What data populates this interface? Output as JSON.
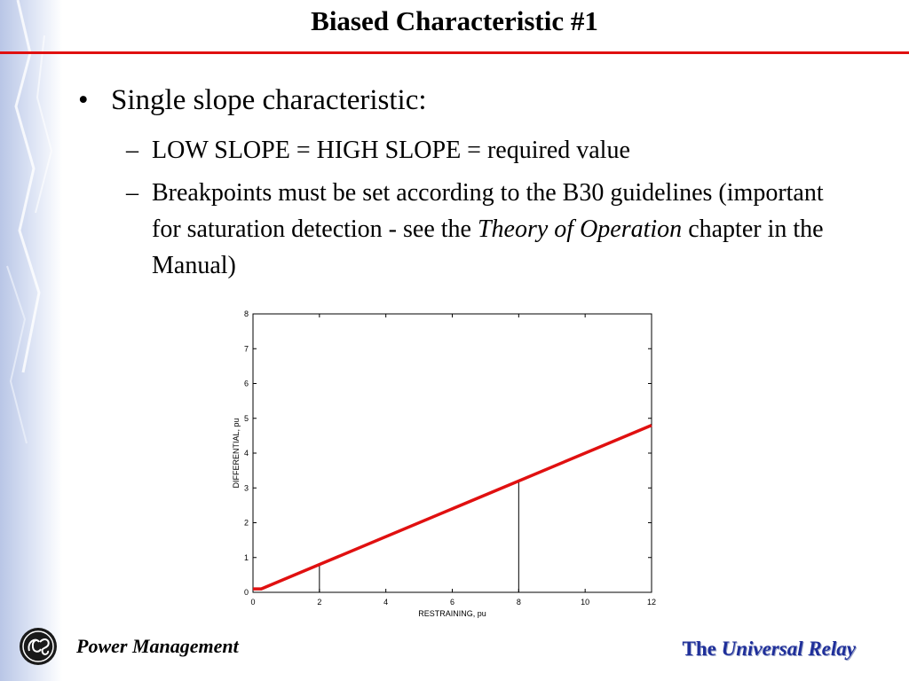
{
  "slide": {
    "title": "Biased Characteristic #1",
    "bullet": "Single slope characteristic:",
    "sub_bullets": {
      "first": "LOW SLOPE = HIGH SLOPE = required value",
      "second_part1": "Breakpoints must be set according to the B30 guidelines (important for saturation detection - see the ",
      "second_italic": "Theory of Operation",
      "second_part2": " chapter in the Manual)"
    },
    "bullet_marker": "•",
    "dash_marker": "–"
  },
  "footer": {
    "left": "Power Management",
    "right_the": "The ",
    "right_em": "Universal Relay",
    "logo": "ge-logo-icon"
  },
  "colors": {
    "accent_red": "#e01010",
    "series_red": "#e01010",
    "footer_blue": "#1f2f9a"
  },
  "chart_data": {
    "type": "line",
    "xlabel": "RESTRAINING, pu",
    "ylabel": "DIFFERENTIAL, pu",
    "xlim": [
      0,
      12
    ],
    "ylim": [
      0,
      8
    ],
    "xticks": [
      0,
      2,
      4,
      6,
      8,
      10,
      12
    ],
    "yticks": [
      0,
      1,
      2,
      3,
      4,
      5,
      6,
      7,
      8
    ],
    "series": [
      {
        "x": [
          0,
          0.25,
          12
        ],
        "y": [
          0.1,
          0.1,
          4.8
        ]
      }
    ],
    "breakpoints": [
      {
        "x": 2,
        "y": 0.8
      },
      {
        "x": 8,
        "y": 3.2
      }
    ],
    "grid": false
  }
}
